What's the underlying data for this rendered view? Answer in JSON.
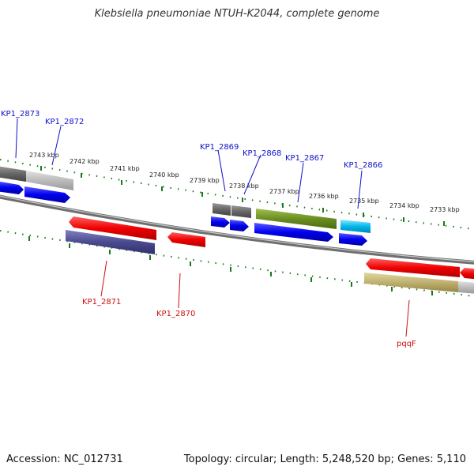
{
  "title": "Klebsiella pneumoniae NTUH-K2044, complete genome",
  "accession": "Accession: NC_012731",
  "topology": "Topology: circular; Length: 5,248,520 bp; Genes: 5,110",
  "ticks": [
    "2743 kbp",
    "2742 kbp",
    "2741 kbp",
    "2740 kbp",
    "2739 kbp",
    "2738 kbp",
    "2737 kbp",
    "2736 kbp",
    "2735 kbp",
    "2734 kbp",
    "2733 kbp"
  ],
  "colors": {
    "forward_label": "#1010cc",
    "reverse_label": "#cc1010",
    "tick": "#1a7a1a",
    "backbone": "#808080"
  },
  "genes_forward": [
    "KP1_2873",
    "KP1_2872",
    "KP1_2869",
    "KP1_2868",
    "KP1_2867",
    "KP1_2866"
  ],
  "genes_reverse": [
    "KP1_2871",
    "KP1_2870",
    "pqqF"
  ]
}
